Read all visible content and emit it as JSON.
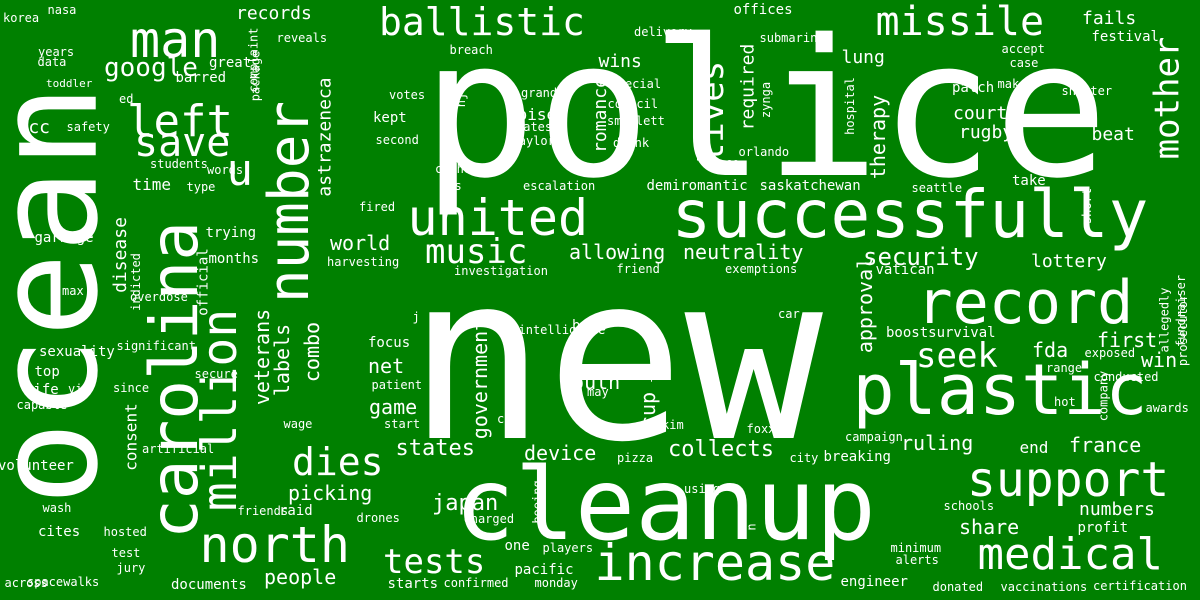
{
  "canvas": {
    "background": "#008000",
    "word_color": "#ffffff"
  },
  "words": [
    "police",
    "new",
    "ocean",
    "cleanup",
    "successfully",
    "plastic",
    "record",
    "carolina",
    "number",
    "united",
    "north",
    "million",
    "increase",
    "medical",
    "support",
    "missile",
    "ballistic",
    "man",
    "left",
    "save",
    "lives",
    "tests",
    "dies",
    "mother",
    "music",
    "u",
    "seek",
    "google",
    "astrazeneca",
    "security",
    "neutrality",
    "allowing",
    "world",
    "veterans",
    "labels",
    "combo",
    "disease",
    "romance",
    "required",
    "therapy",
    "approval",
    "government",
    "net",
    "game",
    "south",
    "japan",
    "picking",
    "device",
    "collects",
    "states",
    "people",
    "cup",
    "ruling",
    "france",
    "share",
    "numbers",
    "win",
    "first",
    "fda",
    "lottery",
    "court",
    "rugby",
    "beat",
    "lung",
    "wins",
    "fails",
    "festival",
    "records",
    "fcc",
    "time",
    "months",
    "trying",
    "consent",
    "demiromantic",
    "saskatchewan",
    "poised",
    "kept",
    "end",
    "focus",
    "patient",
    "official",
    "breaking",
    "documents",
    "cites",
    "raid",
    "boostsurvival",
    "spacewalks",
    "volunteer",
    "sexuality",
    "garbage",
    "max",
    "life",
    "top",
    "boeing",
    "pacific",
    "engineer",
    "profit",
    "take",
    "patch",
    "offices",
    "submarine",
    "delivery",
    "breach",
    "reveals",
    "barred",
    "great",
    "years",
    "data",
    "toddler",
    "ed",
    "nasa",
    "korea",
    "safety",
    "students",
    "type",
    "words",
    "votes",
    "second",
    "grand",
    "rates",
    "baylor",
    "special",
    "council",
    "smollett",
    "drank",
    "co",
    "orlando",
    "zynga",
    "hospital",
    "seattle",
    "shelter",
    "make",
    "case",
    "accept",
    "short",
    "fundraiser",
    "prosecutor",
    "allegedly",
    "exposed",
    "range",
    "conducted",
    "company",
    "hot",
    "awards",
    "campaign",
    "foxx",
    "kim",
    "car",
    "exemptions",
    "friend",
    "investigation",
    "harvesting",
    "overdose",
    "indicted",
    "significant",
    "secure",
    "via",
    "since",
    "capable",
    "artificial",
    "wage",
    "start",
    "com",
    "may",
    "fan",
    "intelligence",
    "buck",
    "j",
    "ups",
    "escalation",
    "catholic",
    "fired",
    "nj",
    "complaint",
    "package",
    "pizza",
    "city",
    "using",
    "n",
    "charged",
    "drones",
    "friends",
    "wash",
    "hosted",
    "test",
    "jury",
    "across",
    "starts",
    "confirmed",
    "monday",
    "one",
    "players",
    "minimum",
    "alerts",
    "schools",
    "donated",
    "vaccinations",
    "certification",
    "vatican"
  ]
}
